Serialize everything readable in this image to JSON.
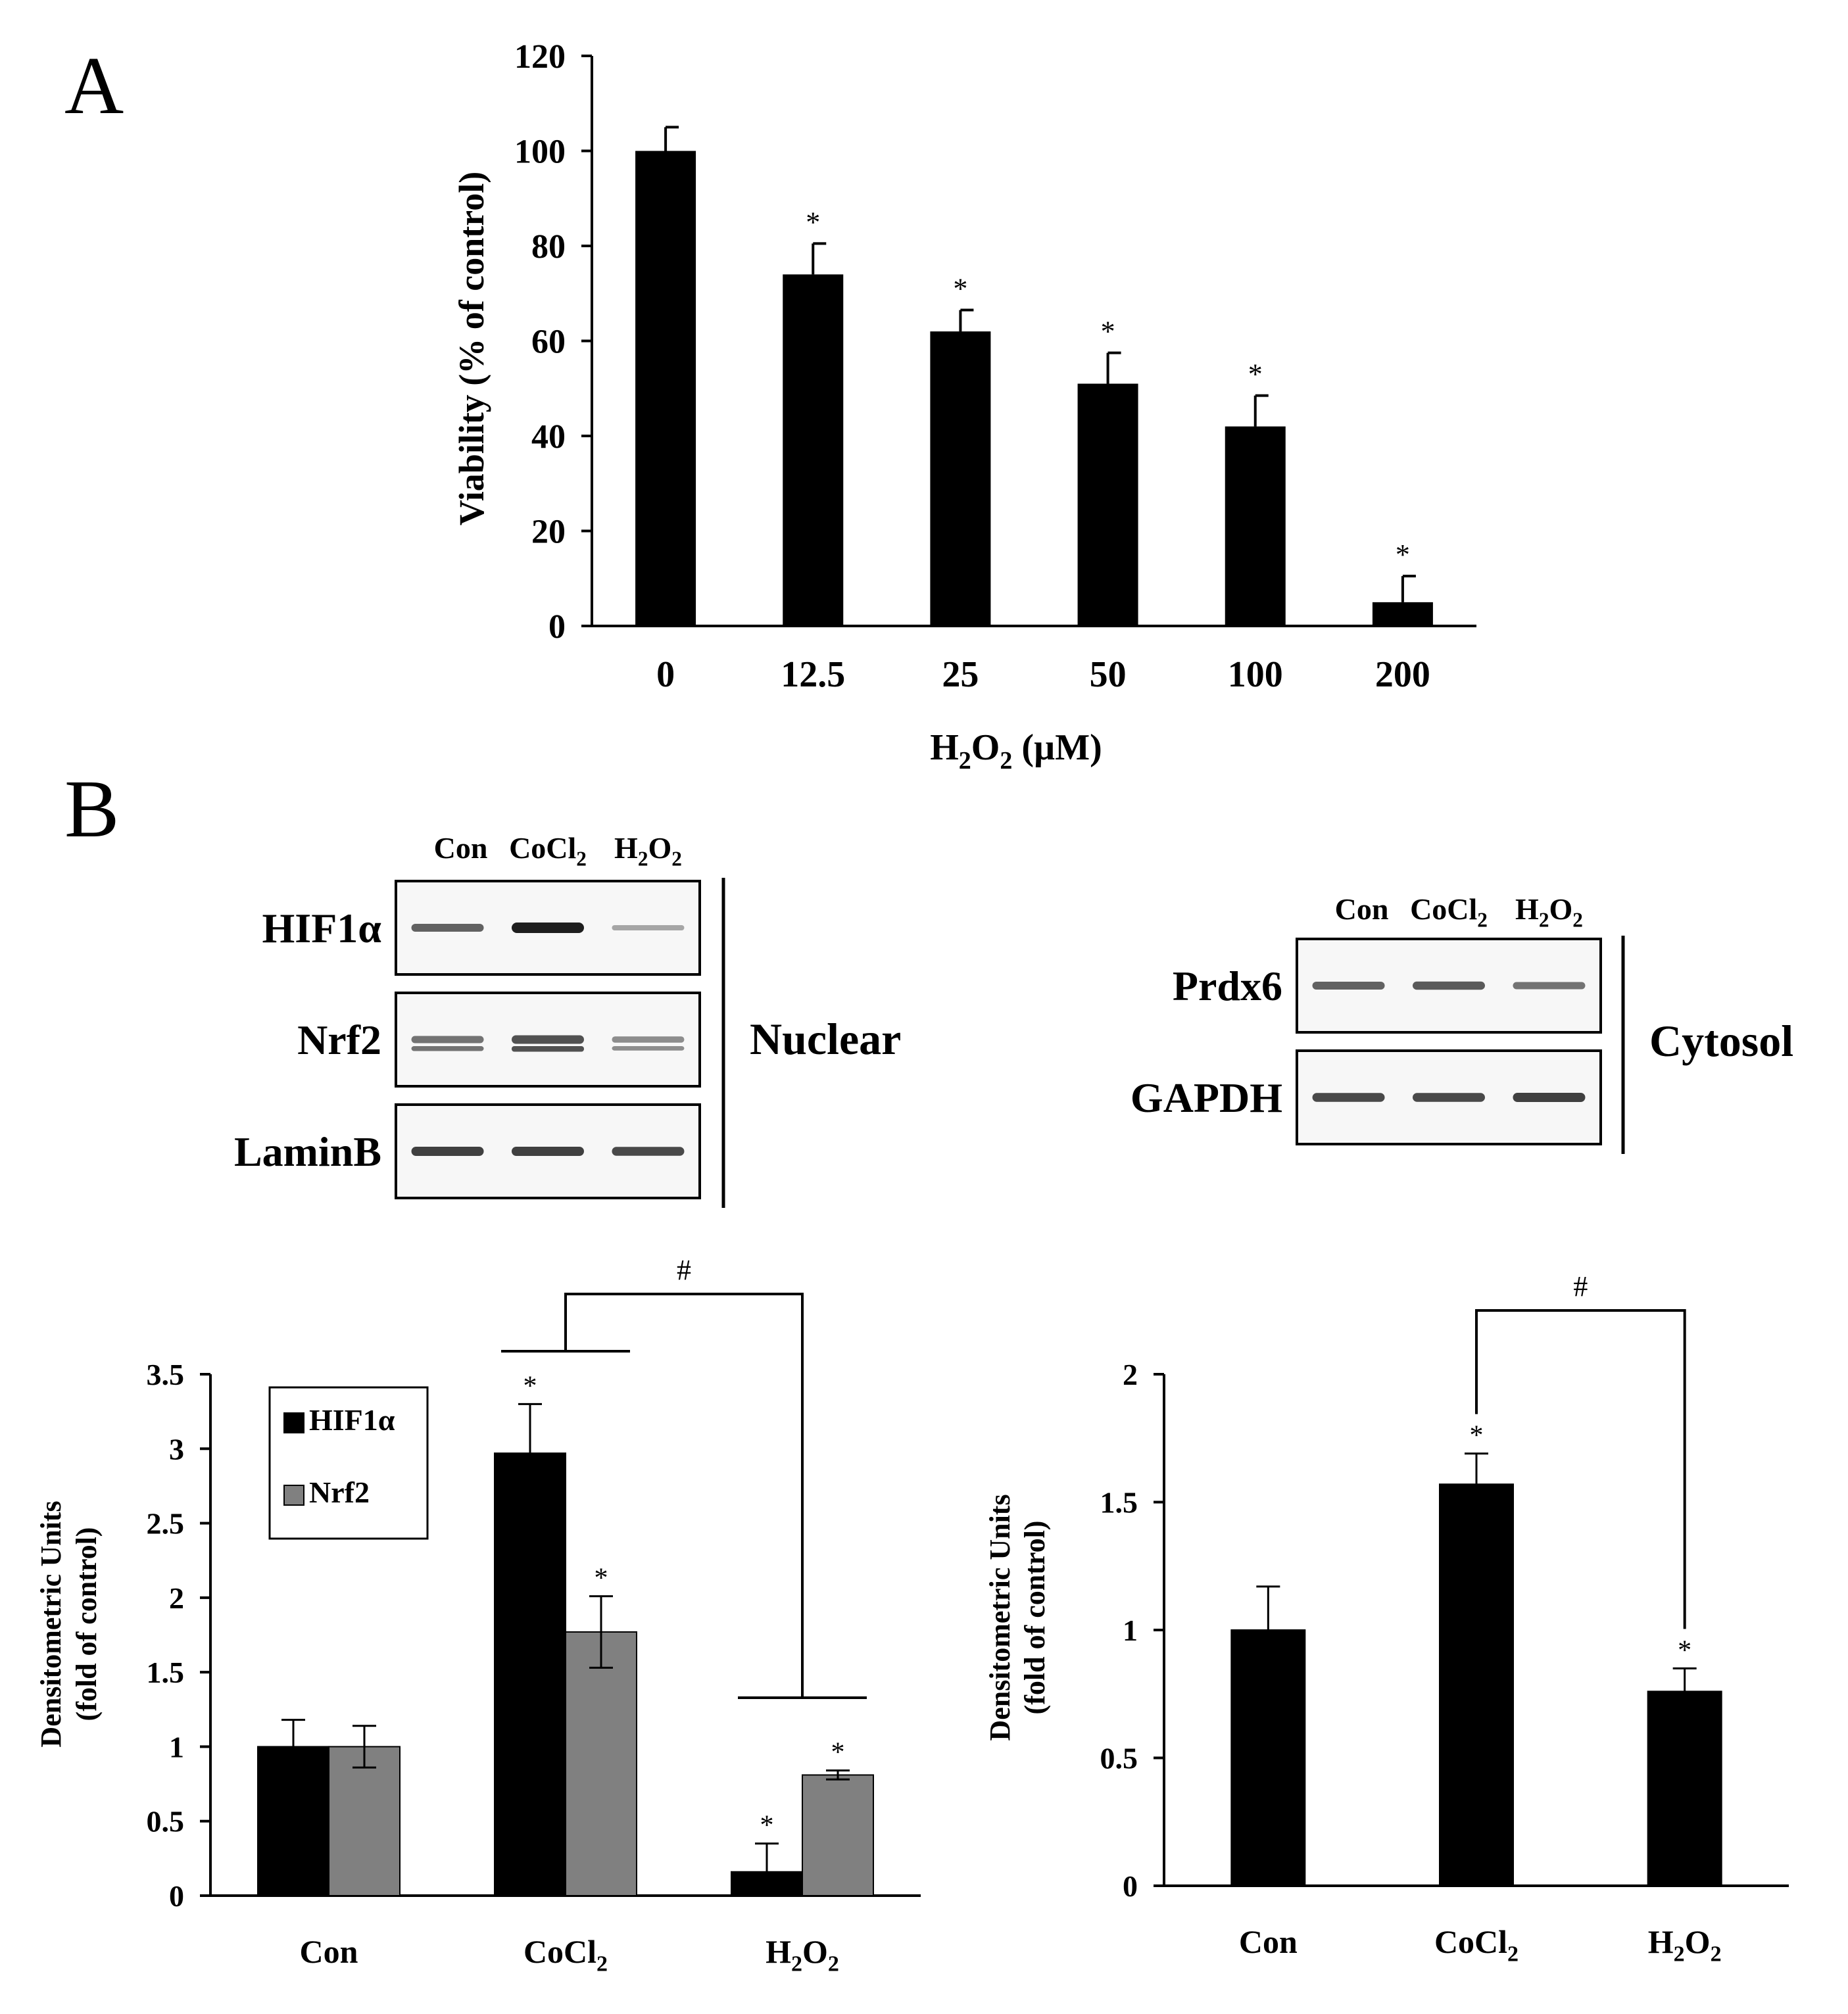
{
  "panel_labels": {
    "a": "A",
    "b": "B"
  },
  "colors": {
    "black_bar": "#000000",
    "gray_bar": "#808080",
    "background": "#ffffff"
  },
  "chart_data": [
    {
      "id": "A",
      "type": "bar",
      "title": "",
      "xlabel": "H2O2 (µM)",
      "xlabel_parts": {
        "base1": "H",
        "sub1": "2",
        "base2": "O",
        "sub2": "2",
        "rest": " (µM)"
      },
      "ylabel": "Viability (% of control)",
      "categories": [
        "0",
        "12.5",
        "25",
        "50",
        "100",
        "200"
      ],
      "values": [
        100,
        74,
        62,
        51,
        42,
        5
      ],
      "errors": [
        5,
        6.5,
        4.5,
        6.5,
        6.5,
        5.5
      ],
      "significance": [
        "",
        "*",
        "*",
        "*",
        "*",
        "*"
      ],
      "ylim": [
        0,
        120
      ],
      "yticks": [
        "0",
        "20",
        "40",
        "60",
        "80",
        "100",
        "120"
      ],
      "grid": false
    },
    {
      "id": "B-left",
      "type": "bar",
      "title": "",
      "xlabel": "",
      "ylabel": "Densitometric Units (fold of control)",
      "ylabel_lines": [
        "Densitometric Units",
        "(fold of control)"
      ],
      "categories": [
        "Con",
        "CoCl2",
        "H2O2"
      ],
      "series": [
        {
          "name": "HIF1α",
          "color": "#000000",
          "values": [
            1.0,
            2.97,
            0.16
          ],
          "errors": [
            0.18,
            0.33,
            0.19
          ],
          "significance": [
            "",
            "*",
            "*"
          ]
        },
        {
          "name": "Nrf2",
          "color": "#808080",
          "values": [
            1.0,
            1.77,
            0.81
          ],
          "errors": [
            0.14,
            0.24,
            0.03
          ],
          "significance": [
            "",
            "*",
            "*"
          ]
        }
      ],
      "comparison": {
        "label": "#",
        "between": [
          "CoCl2",
          "H2O2"
        ]
      },
      "ylim": [
        0,
        3.5
      ],
      "yticks": [
        "0",
        "0.5",
        "1",
        "1.5",
        "2",
        "2.5",
        "3",
        "3.5"
      ],
      "legend": "top-left",
      "grid": false
    },
    {
      "id": "B-right",
      "type": "bar",
      "title": "",
      "xlabel": "",
      "ylabel": "Densitometric Units (fold of control)",
      "ylabel_lines": [
        "Densitometric Units",
        "(fold of control)"
      ],
      "categories": [
        "Con",
        "CoCl2",
        "H2O2"
      ],
      "values": [
        1.0,
        1.57,
        0.76
      ],
      "errors": [
        0.17,
        0.12,
        0.09
      ],
      "significance": [
        "",
        "*",
        "*"
      ],
      "comparison": {
        "label": "#",
        "between": [
          "CoCl2",
          "H2O2"
        ]
      },
      "ylim": [
        0,
        2
      ],
      "yticks": [
        "0",
        "0.5",
        "1",
        "1.5",
        "2"
      ],
      "grid": false
    }
  ],
  "blots": {
    "nuclear": {
      "group_label": "Nuclear",
      "lanes": [
        "Con",
        "CoCl2",
        "H2O2"
      ],
      "rows": [
        {
          "label": "HIF1α",
          "intensity": [
            0.6,
            1.0,
            0.2
          ]
        },
        {
          "label": "Nrf2",
          "intensity": [
            0.5,
            0.7,
            0.35
          ]
        },
        {
          "label": "LaminB",
          "intensity": [
            0.8,
            0.8,
            0.75
          ]
        }
      ]
    },
    "cytosol": {
      "group_label": "Cytosol",
      "lanes": [
        "Con",
        "CoCl2",
        "H2O2"
      ],
      "rows": [
        {
          "label": "Prdx6",
          "intensity": [
            0.6,
            0.65,
            0.5
          ]
        },
        {
          "label": "GAPDH",
          "intensity": [
            0.75,
            0.75,
            0.8
          ]
        }
      ]
    }
  }
}
